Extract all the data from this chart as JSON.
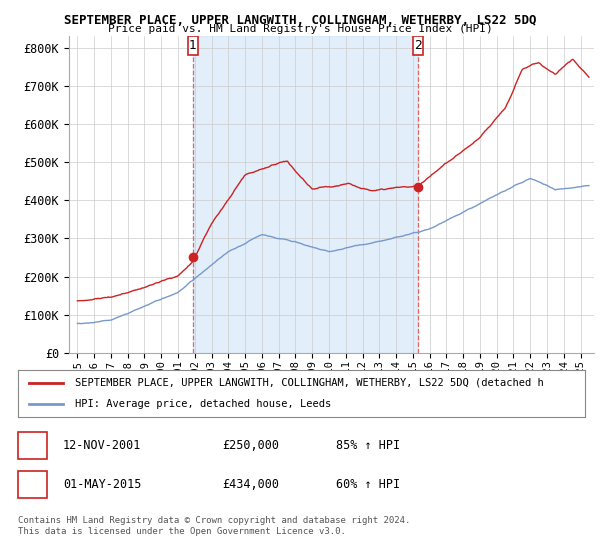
{
  "title": "SEPTEMBER PLACE, UPPER LANGWITH, COLLINGHAM, WETHERBY, LS22 5DQ",
  "subtitle": "Price paid vs. HM Land Registry's House Price Index (HPI)",
  "ylabel_ticks": [
    "£0",
    "£100K",
    "£200K",
    "£300K",
    "£400K",
    "£500K",
    "£600K",
    "£700K",
    "£800K"
  ],
  "ytick_values": [
    0,
    100000,
    200000,
    300000,
    400000,
    500000,
    600000,
    700000,
    800000
  ],
  "ylim": [
    0,
    830000
  ],
  "hpi_color": "#7799cc",
  "hpi_fill_color": "#d0e4f7",
  "price_color": "#cc2222",
  "marker1_year": 2001.87,
  "marker1_price": 250000,
  "marker2_year": 2015.33,
  "marker2_price": 434000,
  "legend_label1": "SEPTEMBER PLACE, UPPER LANGWITH, COLLINGHAM, WETHERBY, LS22 5DQ (detached h",
  "legend_label2": "HPI: Average price, detached house, Leeds",
  "annotation1_date": "12-NOV-2001",
  "annotation1_price": "£250,000",
  "annotation1_pct": "85% ↑ HPI",
  "annotation2_date": "01-MAY-2015",
  "annotation2_price": "£434,000",
  "annotation2_pct": "60% ↑ HPI",
  "footnote1": "Contains HM Land Registry data © Crown copyright and database right 2024.",
  "footnote2": "This data is licensed under the Open Government Licence v3.0.",
  "background_color": "#ffffff",
  "grid_color": "#cccccc",
  "vline_color": "#dd6666"
}
